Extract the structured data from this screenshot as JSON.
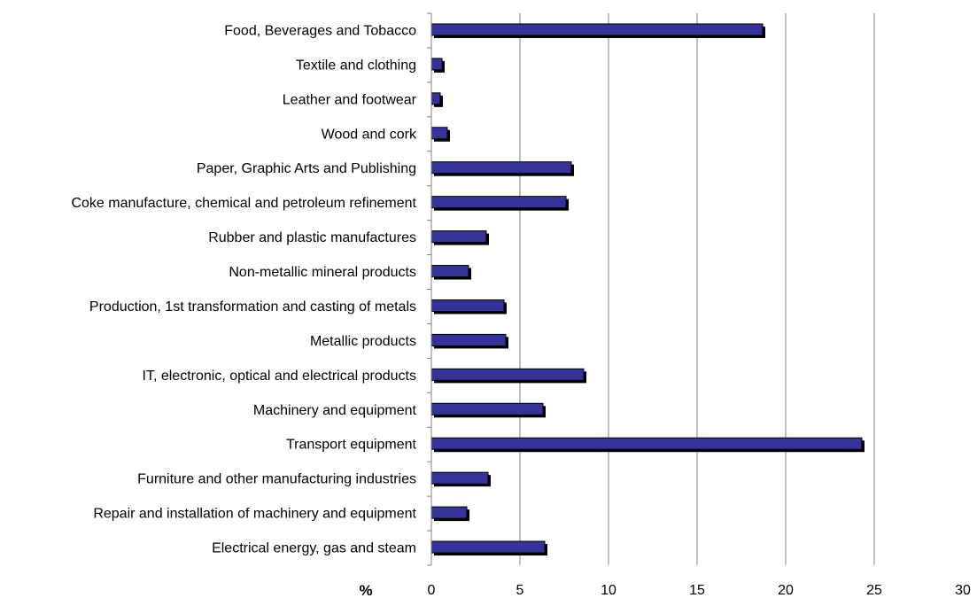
{
  "chart_data": {
    "type": "bar",
    "orientation": "horizontal",
    "categories": [
      "Food, Beverages and Tobacco",
      "Textile and clothing",
      "Leather and footwear",
      "Wood and cork",
      "Paper, Graphic Arts and Publishing",
      "Coke manufacture, chemical and petroleum refinement ",
      "Rubber and plastic manufactures",
      "Non-metallic mineral products",
      "Production, 1st transformation and casting of metals",
      "Metallic products",
      "IT, electronic, optical and electrical products",
      "Machinery and equipment",
      "Transport equipment",
      "Furniture and other manufacturing industries",
      "Repair and installation of machinery and equipment",
      "Electrical energy, gas and steam"
    ],
    "values": [
      18.7,
      0.6,
      0.5,
      0.9,
      7.9,
      7.6,
      3.1,
      2.1,
      4.1,
      4.2,
      8.6,
      6.3,
      24.3,
      3.2,
      2.0,
      6.4
    ],
    "x_unit_label": "%",
    "xlim": [
      0,
      30
    ],
    "x_ticks": [
      "0",
      "5",
      "10",
      "15",
      "20",
      "25",
      "30"
    ],
    "grid": "vertical",
    "bar_color": "#333399",
    "shadow_color": "#000000",
    "gridline_color": "#808080"
  }
}
